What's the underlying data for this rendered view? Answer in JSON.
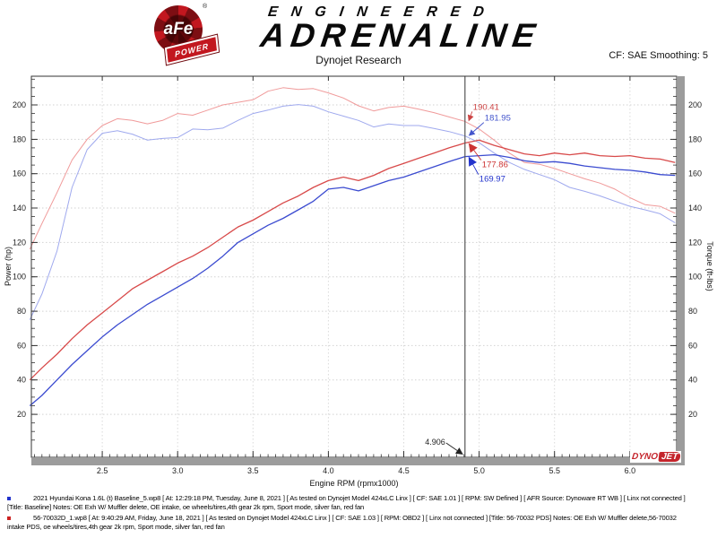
{
  "header": {
    "brand_top": "ENGINEERED",
    "brand_bottom": "ADRENALINE",
    "logo": {
      "circle_text": "aFe",
      "banner_text": "POWER",
      "registered": "®"
    },
    "subtitle": "Dynojet Research",
    "smoothing": "CF: SAE Smoothing: 5"
  },
  "chart_data": {
    "type": "line",
    "title": "Dynojet Research",
    "xlabel": "Engine RPM (rpmx1000)",
    "ylabel_left": "Power (hp)",
    "ylabel_right": "Torque (ft-lbs)",
    "x_range": [
      2.03,
      6.31
    ],
    "y_range": [
      -5,
      216.7
    ],
    "x_ticks": [
      2.5,
      3.0,
      3.5,
      4.0,
      4.5,
      5.0,
      5.5,
      6.0
    ],
    "y_ticks": [
      20,
      40,
      60,
      80,
      100,
      120,
      140,
      160,
      180,
      200
    ],
    "grid": "dotted both axes",
    "legend_position": "none",
    "cursor": {
      "rpm": 4.906,
      "label": "4.906"
    },
    "rpm": [
      2.02,
      2.1,
      2.2,
      2.3,
      2.4,
      2.5,
      2.6,
      2.7,
      2.8,
      2.9,
      3.0,
      3.1,
      3.2,
      3.3,
      3.4,
      3.5,
      3.6,
      3.7,
      3.8,
      3.9,
      4.0,
      4.1,
      4.2,
      4.3,
      4.4,
      4.5,
      4.6,
      4.7,
      4.8,
      4.906,
      5.0,
      5.1,
      5.2,
      5.3,
      5.4,
      5.5,
      5.6,
      5.7,
      5.8,
      5.9,
      6.0,
      6.1,
      6.2,
      6.3
    ],
    "series": [
      {
        "name": "Torque 56-70032 PDS (red)",
        "axis": "torque",
        "color": "#f09a9a",
        "width": 1,
        "values": [
          116,
          131,
          149,
          168,
          180,
          188,
          192,
          191,
          189,
          191,
          195,
          194,
          197,
          200,
          201.5,
          203,
          208,
          210,
          209,
          209.5,
          207,
          204,
          199.5,
          196.5,
          198.5,
          199.3,
          197.5,
          195.5,
          193,
          190.41,
          186,
          179.5,
          172,
          166.5,
          165.5,
          163,
          160,
          157,
          154.5,
          151,
          146,
          142,
          141,
          137
        ]
      },
      {
        "name": "Torque Baseline (blue)",
        "axis": "torque",
        "color": "#9fa9ee",
        "width": 1,
        "values": [
          75,
          90,
          115,
          152,
          174,
          183.5,
          185,
          183,
          179.5,
          180.5,
          181,
          186,
          185.5,
          186.5,
          191,
          195,
          197,
          199.3,
          200.2,
          199.3,
          196,
          193.5,
          191,
          187.2,
          188.9,
          188,
          188,
          186.3,
          184.5,
          181.95,
          178,
          172,
          166.5,
          162.5,
          159.5,
          156.5,
          152,
          149.7,
          147.1,
          144,
          141,
          139,
          136.7,
          131.4
        ]
      },
      {
        "name": "Power 56-70032 PDS (red)",
        "axis": "power",
        "color": "#d84a4a",
        "width": 1.3,
        "values": [
          40,
          47,
          55,
          64,
          72,
          79,
          86,
          93,
          98,
          103,
          108,
          112,
          117,
          123,
          129,
          133,
          138,
          143,
          147,
          152,
          156,
          158,
          156,
          159,
          163,
          166,
          169,
          172,
          175,
          177.86,
          179.5,
          176.5,
          174,
          171.5,
          170.5,
          172,
          171,
          172,
          170.5,
          170,
          170.5,
          169,
          168.5,
          166.5
        ]
      },
      {
        "name": "Power Baseline (blue)",
        "axis": "power",
        "color": "#3b4bd0",
        "width": 1.3,
        "values": [
          25,
          31,
          40,
          49,
          57,
          65,
          72,
          78,
          84,
          89,
          94,
          99,
          105,
          112,
          120,
          125,
          130,
          134,
          139,
          144,
          151,
          152,
          150,
          153,
          156,
          158,
          161,
          164,
          167,
          169.97,
          170.5,
          171,
          169.5,
          167.5,
          166.5,
          167,
          166,
          164.5,
          163.5,
          162.5,
          162,
          161,
          159.5,
          159
        ]
      }
    ],
    "cursor_markers": [
      {
        "label": "190.41",
        "series": 0,
        "color": "#cc4444"
      },
      {
        "label": "181.95",
        "series": 1,
        "color": "#4455cc"
      },
      {
        "label": "177.86",
        "series": 2,
        "color": "#cc3333"
      },
      {
        "label": "169.97",
        "series": 3,
        "color": "#2233cc"
      }
    ],
    "dynojet_logo": {
      "part1": "DYNO",
      "part2": "JET"
    }
  },
  "legend": [
    {
      "bullet_color": "#2233cc",
      "line1": "2021 Hyundai Kona 1.6L (t) Baseline_5.wp8 [ At: 12:29:18 PM, Tuesday, June 8, 2021 ] [ As tested on Dynojet Model 424xLC Linx ] [ CF: SAE 1.01 ] [ RPM: SW Defined ] [ AFR Source: Dynoware RT WB ] [ Linx not connected ]",
      "line2": "[Title: Baseline]  Notes: OE Exh W/ Muffler delete, OE intake, oe wheels/tires,4th gear 2k rpm, Sport mode, silver fan, red fan"
    },
    {
      "bullet_color": "#cc2222",
      "line1": "56-70032D_1.wp8 [ At: 9:40:29 AM, Friday, June 18, 2021 ] [ As tested on Dynojet Model 424xLC Linx ] [ CF: SAE 1.03 ] [ RPM: OBD2 ] [ Linx not connected ] [Title: 56-70032 PDS]  Notes: OE Exh W/ Muffler delete,56-70032",
      "line2": "intake PDS, oe wheels/tires,4th gear 2k rpm, Sport mode, silver fan, red fan"
    }
  ]
}
